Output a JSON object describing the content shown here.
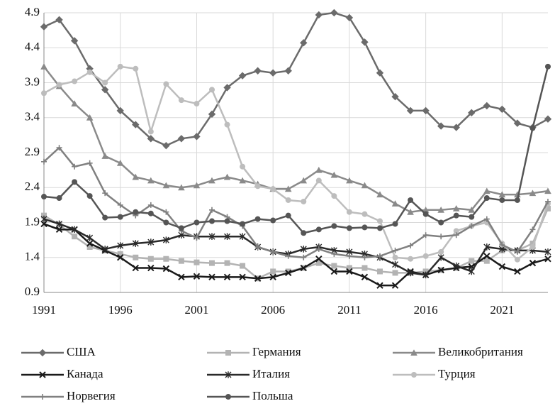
{
  "chart_data": {
    "type": "line",
    "x": [
      1991,
      1992,
      1993,
      1994,
      1995,
      1996,
      1997,
      1998,
      1999,
      2000,
      2001,
      2002,
      2003,
      2004,
      2005,
      2006,
      2007,
      2008,
      2009,
      2010,
      2011,
      2012,
      2013,
      2014,
      2015,
      2016,
      2017,
      2018,
      2019,
      2020,
      2021,
      2022,
      2023,
      2024
    ],
    "xlim": [
      1991,
      2024
    ],
    "xticks": [
      1991,
      1996,
      2001,
      2006,
      2011,
      2016,
      2021
    ],
    "ylim": [
      0.9,
      4.9
    ],
    "yticks": [
      0.9,
      1.4,
      1.9,
      2.4,
      2.9,
      3.4,
      3.9,
      4.4,
      4.9
    ],
    "grid": true,
    "series": [
      {
        "name": "США",
        "color": "#6b6b6b",
        "marker": "diamond",
        "values": [
          4.7,
          4.8,
          4.5,
          4.1,
          3.8,
          3.5,
          3.3,
          3.1,
          3.0,
          3.1,
          3.13,
          3.45,
          3.83,
          4.0,
          4.07,
          4.04,
          4.07,
          4.47,
          4.87,
          4.9,
          4.83,
          4.48,
          4.04,
          3.7,
          3.5,
          3.5,
          3.28,
          3.26,
          3.47,
          3.57,
          3.52,
          3.32,
          3.26,
          3.38
        ]
      },
      {
        "name": "Германия",
        "color": "#b3b3b3",
        "marker": "square",
        "values": [
          2.0,
          1.87,
          1.7,
          1.55,
          1.5,
          1.45,
          1.4,
          1.38,
          1.38,
          1.35,
          1.33,
          1.32,
          1.32,
          1.28,
          1.1,
          1.2,
          1.2,
          1.25,
          1.32,
          1.28,
          1.25,
          1.25,
          1.2,
          1.18,
          1.18,
          1.2,
          1.22,
          1.25,
          1.35,
          1.35,
          1.5,
          1.5,
          1.6,
          2.1
        ]
      },
      {
        "name": "Великобритания",
        "color": "#8a8a8a",
        "marker": "triangle",
        "values": [
          4.13,
          3.85,
          3.6,
          3.4,
          2.85,
          2.75,
          2.55,
          2.5,
          2.43,
          2.4,
          2.43,
          2.5,
          2.55,
          2.5,
          2.45,
          2.38,
          2.38,
          2.5,
          2.65,
          2.58,
          2.5,
          2.43,
          2.3,
          2.17,
          2.05,
          2.08,
          2.08,
          2.1,
          2.08,
          2.35,
          2.3,
          2.3,
          2.32,
          2.35
        ]
      },
      {
        "name": "Канада",
        "color": "#1a1a1a",
        "marker": "x",
        "values": [
          1.88,
          1.8,
          1.8,
          1.6,
          1.5,
          1.4,
          1.25,
          1.25,
          1.24,
          1.12,
          1.13,
          1.12,
          1.12,
          1.12,
          1.1,
          1.12,
          1.18,
          1.25,
          1.38,
          1.2,
          1.2,
          1.12,
          1.0,
          1.0,
          1.2,
          1.15,
          1.22,
          1.25,
          1.27,
          1.42,
          1.27,
          1.2,
          1.32,
          1.38
        ]
      },
      {
        "name": "Италия",
        "color": "#2a2a2a",
        "marker": "star",
        "values": [
          1.95,
          1.88,
          1.8,
          1.68,
          1.52,
          1.57,
          1.6,
          1.62,
          1.65,
          1.72,
          1.7,
          1.7,
          1.7,
          1.7,
          1.55,
          1.48,
          1.45,
          1.52,
          1.55,
          1.5,
          1.48,
          1.45,
          1.4,
          1.3,
          1.18,
          1.15,
          1.4,
          1.28,
          1.2,
          1.55,
          1.52,
          1.5,
          1.5,
          1.48
        ]
      },
      {
        "name": "Турция",
        "color": "#bdbdbd",
        "marker": "circle",
        "values": [
          3.75,
          3.87,
          3.92,
          4.05,
          3.9,
          4.13,
          4.1,
          3.2,
          3.88,
          3.65,
          3.6,
          3.8,
          3.3,
          2.7,
          2.42,
          2.38,
          2.22,
          2.2,
          2.5,
          2.28,
          2.05,
          2.02,
          1.92,
          1.4,
          1.38,
          1.42,
          1.48,
          1.78,
          1.85,
          1.9,
          1.6,
          1.37,
          1.55,
          2.17
        ]
      },
      {
        "name": "Норвегия",
        "color": "#808080",
        "marker": "plus",
        "values": [
          2.77,
          2.97,
          2.7,
          2.75,
          2.32,
          2.15,
          2.0,
          2.15,
          2.05,
          1.78,
          1.68,
          2.08,
          1.98,
          1.85,
          1.55,
          1.48,
          1.42,
          1.4,
          1.52,
          1.45,
          1.42,
          1.4,
          1.42,
          1.5,
          1.57,
          1.72,
          1.7,
          1.72,
          1.85,
          1.95,
          1.58,
          1.48,
          1.8,
          2.2
        ]
      },
      {
        "name": "Польша",
        "color": "#555555",
        "marker": "circle",
        "values": [
          2.27,
          2.25,
          2.48,
          2.28,
          1.97,
          1.98,
          2.05,
          2.03,
          1.9,
          1.82,
          1.9,
          1.92,
          1.92,
          1.88,
          1.95,
          1.93,
          2.0,
          1.75,
          1.8,
          1.85,
          1.82,
          1.83,
          1.82,
          1.88,
          2.22,
          2.02,
          1.9,
          2.0,
          1.98,
          2.25,
          2.22,
          2.22,
          3.25,
          4.13
        ]
      }
    ]
  }
}
